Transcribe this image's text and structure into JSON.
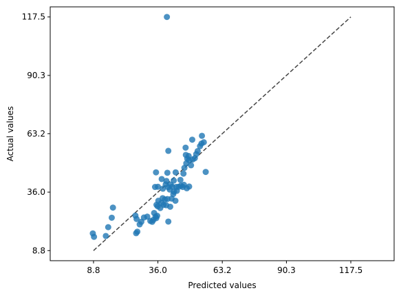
{
  "chart_data": {
    "type": "scatter",
    "xlabel": "Predicted values",
    "ylabel": "Actual values",
    "xlim": [
      -9.5,
      135.8
    ],
    "ylim": [
      4.1,
      122.2
    ],
    "x_ticks": [
      8.8,
      36.0,
      63.2,
      90.3,
      117.5
    ],
    "y_ticks": [
      8.8,
      36.0,
      63.2,
      90.3,
      117.5
    ],
    "x_tick_labels": [
      "8.8",
      "36.0",
      "63.2",
      "90.3",
      "117.5"
    ],
    "y_tick_labels": [
      "8.8",
      "36.0",
      "63.2",
      "90.3",
      "117.5"
    ],
    "grid": false,
    "point_color": "#1f77b4",
    "reference_line": {
      "from": [
        8.8,
        8.8
      ],
      "to": [
        117.5,
        117.5
      ],
      "color": "#444444",
      "style": "dashed"
    },
    "points": [
      {
        "x": 39.8,
        "y": 117.5
      },
      {
        "x": 8.5,
        "y": 16.8
      },
      {
        "x": 9.0,
        "y": 15.2
      },
      {
        "x": 14.0,
        "y": 15.6
      },
      {
        "x": 15.0,
        "y": 19.7
      },
      {
        "x": 16.5,
        "y": 24.1
      },
      {
        "x": 17.0,
        "y": 28.8
      },
      {
        "x": 26.8,
        "y": 16.9
      },
      {
        "x": 27.3,
        "y": 17.6
      },
      {
        "x": 26.5,
        "y": 25.1
      },
      {
        "x": 27.0,
        "y": 23.5
      },
      {
        "x": 28.3,
        "y": 21.0
      },
      {
        "x": 29.0,
        "y": 22.2
      },
      {
        "x": 30.1,
        "y": 24.2
      },
      {
        "x": 31.5,
        "y": 24.6
      },
      {
        "x": 32.8,
        "y": 22.6
      },
      {
        "x": 33.6,
        "y": 22.2
      },
      {
        "x": 34.1,
        "y": 23.1
      },
      {
        "x": 35.0,
        "y": 24.6
      },
      {
        "x": 35.3,
        "y": 23.9
      },
      {
        "x": 35.7,
        "y": 25.0
      },
      {
        "x": 34.4,
        "y": 26.3
      },
      {
        "x": 35.4,
        "y": 30.1
      },
      {
        "x": 35.9,
        "y": 29.4
      },
      {
        "x": 36.2,
        "y": 32.0
      },
      {
        "x": 37.0,
        "y": 28.6
      },
      {
        "x": 37.5,
        "y": 31.0
      },
      {
        "x": 38.0,
        "y": 33.2
      },
      {
        "x": 38.4,
        "y": 30.1
      },
      {
        "x": 39.0,
        "y": 32.6
      },
      {
        "x": 39.5,
        "y": 29.9
      },
      {
        "x": 40.0,
        "y": 32.8
      },
      {
        "x": 41.2,
        "y": 29.2
      },
      {
        "x": 41.8,
        "y": 33.0
      },
      {
        "x": 42.5,
        "y": 35.1
      },
      {
        "x": 43.4,
        "y": 32.0
      },
      {
        "x": 44.0,
        "y": 36.6
      },
      {
        "x": 40.4,
        "y": 22.3
      },
      {
        "x": 36.0,
        "y": 38.5
      },
      {
        "x": 38.1,
        "y": 37.6
      },
      {
        "x": 39.3,
        "y": 39.6
      },
      {
        "x": 40.3,
        "y": 38.3
      },
      {
        "x": 41.0,
        "y": 37.2
      },
      {
        "x": 41.4,
        "y": 39.5
      },
      {
        "x": 42.1,
        "y": 38.5
      },
      {
        "x": 42.8,
        "y": 36.2
      },
      {
        "x": 43.8,
        "y": 38.4
      },
      {
        "x": 44.8,
        "y": 38.5
      },
      {
        "x": 45.7,
        "y": 39.0
      },
      {
        "x": 46.5,
        "y": 38.4
      },
      {
        "x": 47.0,
        "y": 39.4
      },
      {
        "x": 48.2,
        "y": 37.8
      },
      {
        "x": 49.2,
        "y": 38.6
      },
      {
        "x": 34.8,
        "y": 38.4
      },
      {
        "x": 37.6,
        "y": 42.1
      },
      {
        "x": 39.6,
        "y": 41.2
      },
      {
        "x": 40.0,
        "y": 45.0
      },
      {
        "x": 35.2,
        "y": 45.2
      },
      {
        "x": 42.7,
        "y": 41.4
      },
      {
        "x": 43.5,
        "y": 45.2
      },
      {
        "x": 45.5,
        "y": 41.7
      },
      {
        "x": 46.8,
        "y": 44.6
      },
      {
        "x": 47.2,
        "y": 47.3
      },
      {
        "x": 48.0,
        "y": 49.4
      },
      {
        "x": 48.4,
        "y": 51.6
      },
      {
        "x": 49.1,
        "y": 50.9
      },
      {
        "x": 50.0,
        "y": 48.5
      },
      {
        "x": 50.7,
        "y": 51.2
      },
      {
        "x": 51.6,
        "y": 51.8
      },
      {
        "x": 52.2,
        "y": 53.7
      },
      {
        "x": 52.8,
        "y": 55.1
      },
      {
        "x": 53.8,
        "y": 57.4
      },
      {
        "x": 54.4,
        "y": 58.6
      },
      {
        "x": 55.4,
        "y": 59.2
      },
      {
        "x": 54.6,
        "y": 62.2
      },
      {
        "x": 50.5,
        "y": 60.4
      },
      {
        "x": 47.7,
        "y": 56.7
      },
      {
        "x": 40.4,
        "y": 55.2
      },
      {
        "x": 56.2,
        "y": 45.4
      },
      {
        "x": 47.8,
        "y": 53.3
      },
      {
        "x": 49.0,
        "y": 52.8
      }
    ]
  }
}
